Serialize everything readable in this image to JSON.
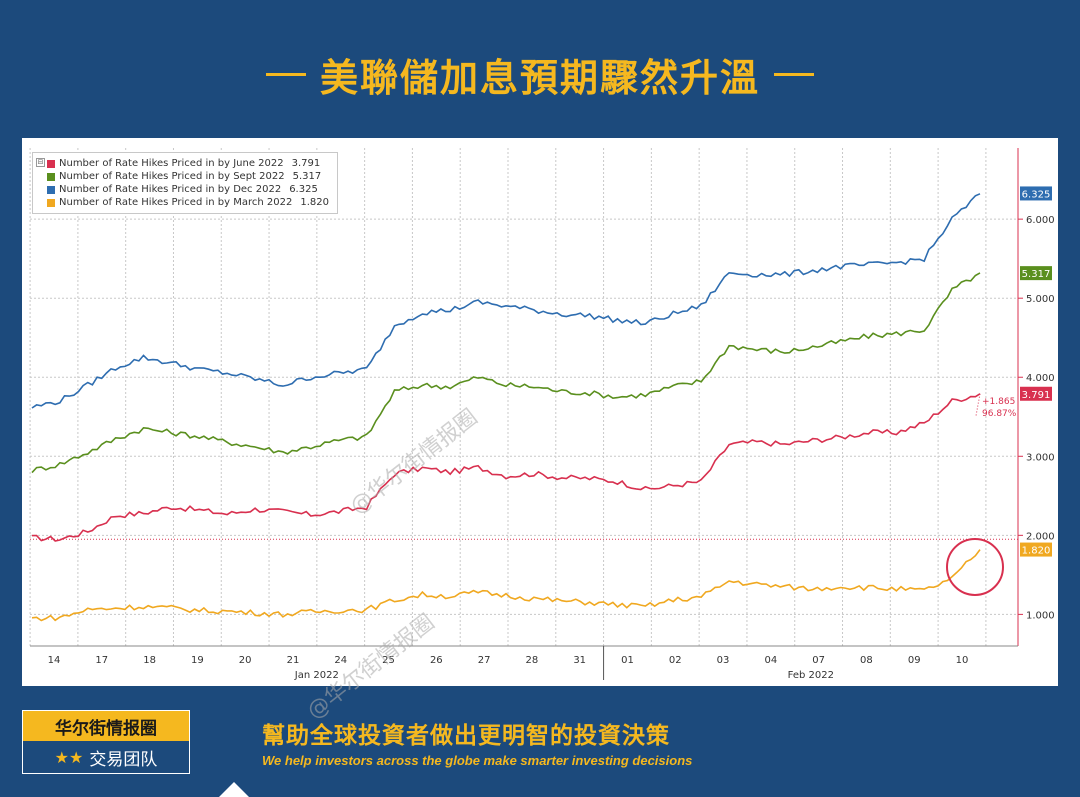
{
  "header": {
    "title": "美聯儲加息預期驟然升溫"
  },
  "watermarks": [
    "@华尔街情报圈",
    "@华尔街情报圈"
  ],
  "chart_data": {
    "type": "line",
    "title": "",
    "xlabel": "",
    "ylabel": "",
    "ylim": [
      0.6,
      6.9
    ],
    "yticks": [
      "1.000",
      "2.000",
      "3.000",
      "4.000",
      "5.000",
      "6.000"
    ],
    "ytick_values": [
      1,
      2,
      3,
      4,
      5,
      6
    ],
    "x_tick_labels": [
      "14",
      "17",
      "18",
      "19",
      "20",
      "21",
      "24",
      "25",
      "26",
      "27",
      "28",
      "31",
      "01",
      "02",
      "03",
      "04",
      "07",
      "08",
      "09",
      "10"
    ],
    "months": [
      "Jan 2022",
      "Feb 2022"
    ],
    "reference_line": 1.95,
    "annotation": {
      "change": "+1.865",
      "percent": "96.87%"
    },
    "series": [
      {
        "name": "Number of Rate Hikes Priced in by June 2022",
        "legend_value": "3.791",
        "last_label": "3.791",
        "color": "#d8304f",
        "values": [
          1.97,
          1.95,
          2.05,
          2.25,
          2.28,
          2.36,
          2.32,
          2.27,
          2.33,
          2.3,
          2.26,
          2.3,
          2.36,
          2.78,
          2.85,
          2.8,
          2.86,
          2.75,
          2.78,
          2.73,
          2.72,
          2.68,
          2.58,
          2.63,
          2.68,
          3.15,
          3.18,
          3.15,
          3.2,
          3.24,
          3.3,
          3.3,
          3.42,
          3.7,
          3.79
        ]
      },
      {
        "name": "Number of Rate Hikes Priced in by Sept 2022",
        "legend_value": "5.317",
        "last_label": "5.317",
        "color": "#5a8f1e",
        "values": [
          2.82,
          2.9,
          3.05,
          3.22,
          3.35,
          3.3,
          3.25,
          3.18,
          3.12,
          3.05,
          3.12,
          3.2,
          3.25,
          3.82,
          3.9,
          3.88,
          4.0,
          3.9,
          3.88,
          3.82,
          3.8,
          3.75,
          3.78,
          3.88,
          3.95,
          4.4,
          4.35,
          4.32,
          4.38,
          4.45,
          4.52,
          4.55,
          4.6,
          5.1,
          5.32
        ]
      },
      {
        "name": "Number of Rate Hikes Priced in by Dec 2022",
        "legend_value": "6.325",
        "last_label": "6.325",
        "color": "#2e6db0",
        "values": [
          3.62,
          3.7,
          3.9,
          4.12,
          4.25,
          4.18,
          4.1,
          4.05,
          3.98,
          3.9,
          4.0,
          4.05,
          4.1,
          4.65,
          4.82,
          4.85,
          4.95,
          4.9,
          4.85,
          4.8,
          4.78,
          4.72,
          4.68,
          4.8,
          4.9,
          5.32,
          5.3,
          5.3,
          5.35,
          5.4,
          5.42,
          5.45,
          5.5,
          6.0,
          6.32
        ]
      },
      {
        "name": "Number of Rate Hikes Priced in by March 2022",
        "legend_value": "1.820",
        "last_label": "1.820",
        "color": "#f0a820",
        "values": [
          0.95,
          0.96,
          1.06,
          1.08,
          1.1,
          1.08,
          1.05,
          1.04,
          1.02,
          1.0,
          1.03,
          1.05,
          1.06,
          1.18,
          1.25,
          1.23,
          1.28,
          1.24,
          1.2,
          1.17,
          1.15,
          1.12,
          1.1,
          1.18,
          1.22,
          1.42,
          1.38,
          1.35,
          1.32,
          1.35,
          1.34,
          1.32,
          1.3,
          1.45,
          1.82
        ]
      }
    ]
  },
  "footer": {
    "brand_name": "华尔街情报圈",
    "brand_stars": "★★",
    "brand_team": "交易团队",
    "slogan_cn": "幫助全球投資者做出更明智的投資決策",
    "slogan_en": "We help investors across the globe make smarter investing decisions"
  }
}
